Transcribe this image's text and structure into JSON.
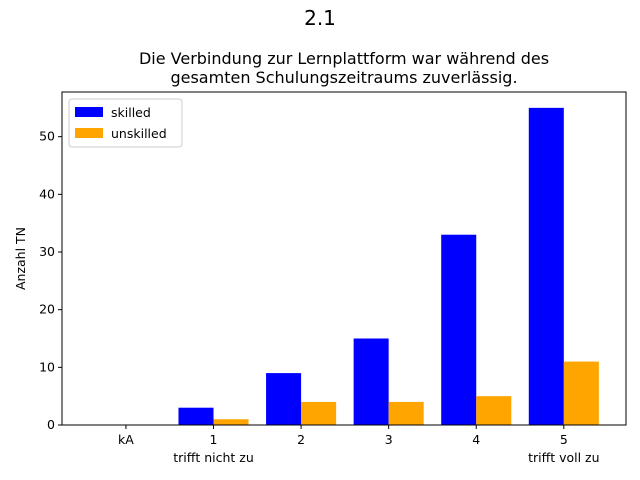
{
  "suptitle": "2.1",
  "chart_data": {
    "type": "bar",
    "title_lines": [
      "Die Verbindung zur Lernplattform war während des",
      "gesamten Schulungszeitraums zuverlässig."
    ],
    "categories": [
      "kA",
      "1",
      "2",
      "3",
      "4",
      "5"
    ],
    "category_sublabels": [
      "",
      "trifft nicht zu",
      "",
      "",
      "",
      "trifft voll zu"
    ],
    "xlabel": "",
    "ylabel": "Anzahl TN",
    "ylim": [
      0,
      57.75
    ],
    "yticks": [
      0,
      10,
      20,
      30,
      40,
      50
    ],
    "grid": false,
    "legend_position": "top-left",
    "series": [
      {
        "name": "skilled",
        "color": "#0000ff",
        "values": [
          0,
          3,
          9,
          15,
          33,
          55
        ]
      },
      {
        "name": "unskilled",
        "color": "#ffa500",
        "values": [
          0,
          1,
          4,
          4,
          5,
          11
        ]
      }
    ]
  }
}
